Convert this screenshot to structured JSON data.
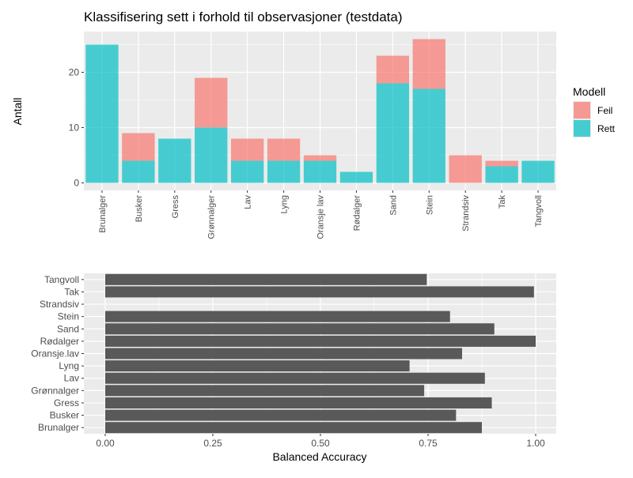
{
  "colors": {
    "panel_bg": "#EBEBEB",
    "grid_major": "#FFFFFF",
    "feil": "#F8766D",
    "rett": "#00BFC4",
    "bar_dark": "#595959",
    "tick_text": "#4D4D4D",
    "axis_text": "#000000"
  },
  "chart_data": [
    {
      "type": "bar",
      "stacked": true,
      "title": "Klassifisering sett i forhold til observasjoner (testdata)",
      "xlabel": "",
      "ylabel": "Antall",
      "ylim": [
        0,
        27
      ],
      "yticks": [
        0,
        10,
        20
      ],
      "grid": true,
      "legend": {
        "title": "Modell",
        "position": "right",
        "entries": [
          "Feil",
          "Rett"
        ]
      },
      "categories": [
        "Brunalger",
        "Busker",
        "Gress",
        "Grønnalger",
        "Lav",
        "Lyng",
        "Oransje lav",
        "Rødalger",
        "Sand",
        "Stein",
        "Strandsiv",
        "Tak",
        "Tangvoll"
      ],
      "series": [
        {
          "name": "Feil",
          "values": [
            0,
            5,
            0,
            9,
            4,
            4,
            1,
            0,
            5,
            9,
            5,
            1,
            0
          ]
        },
        {
          "name": "Rett",
          "values": [
            25,
            4,
            8,
            10,
            4,
            4,
            4,
            2,
            18,
            17,
            0,
            3,
            4
          ]
        }
      ]
    },
    {
      "type": "bar",
      "orientation": "horizontal",
      "title": "",
      "xlabel": "Balanced Accuracy",
      "ylabel": "",
      "xlim": [
        0,
        1
      ],
      "xticks": [
        "0.00",
        "0.25",
        "0.50",
        "0.75",
        "1.00"
      ],
      "grid": true,
      "categories": [
        "Brunalger",
        "Busker",
        "Gress",
        "Grønnalger",
        "Lav",
        "Lyng",
        "Oransje.lav",
        "Rødalger",
        "Sand",
        "Stein",
        "Strandsiv",
        "Tak",
        "Tangvoll"
      ],
      "values": [
        0.875,
        0.815,
        0.898,
        0.741,
        0.882,
        0.707,
        0.829,
        1.0,
        0.904,
        0.801,
        null,
        0.996,
        0.747
      ]
    }
  ]
}
